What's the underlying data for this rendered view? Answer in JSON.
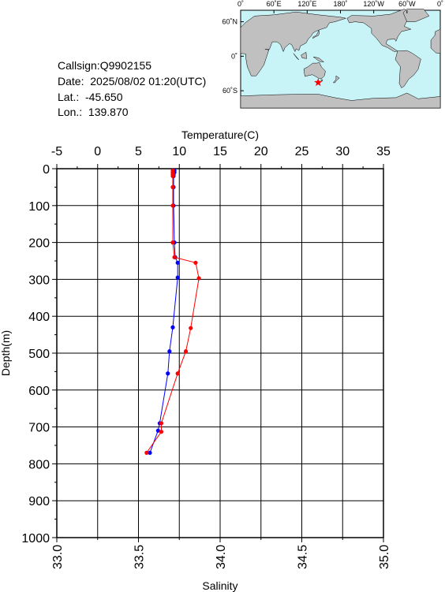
{
  "info": {
    "callsign": "Callsign:Q9902155",
    "date": "Date:  2025/08/02 01:20(UTC)",
    "lat": "Lat.:  -45.650",
    "lon": "Lon.:  139.870"
  },
  "map": {
    "top_ticks": [
      "0˚",
      "60˚E",
      "120˚E",
      "180˚",
      "120˚W",
      "60˚W",
      "0˚"
    ],
    "left_ticks": [
      "60˚N",
      "0˚",
      "60˚S"
    ],
    "ocean_color": "#c8f4f8",
    "land_color": "#c0c0c0",
    "marker": {
      "lon": 139.87,
      "lat": -45.65,
      "symbol": "star",
      "color": "#ff0000"
    }
  },
  "chart_data": {
    "type": "line",
    "x_top": {
      "label": "Temperature(C)",
      "range": [
        -5,
        35
      ],
      "ticks": [
        "-5",
        "0",
        "5",
        "10",
        "15",
        "20",
        "25",
        "30",
        "35"
      ]
    },
    "x_bottom": {
      "label": "Salinity",
      "range": [
        33.0,
        35.0
      ],
      "ticks": [
        "33.0",
        "33.5",
        "34.0",
        "34.5",
        "35.0"
      ]
    },
    "y": {
      "label": "Depth(m)",
      "range": [
        0,
        1000
      ],
      "inverted": true,
      "ticks": [
        "0",
        "100",
        "200",
        "300",
        "400",
        "500",
        "600",
        "700",
        "800",
        "900",
        "1000"
      ]
    },
    "grid": true,
    "series": [
      {
        "axis": "top",
        "color": "#0000ff",
        "depth": [
          5,
          10,
          15,
          20,
          50,
          100,
          200,
          240,
          255,
          295,
          430,
          495,
          555,
          690,
          710,
          770
        ],
        "values": [
          9.4,
          9.4,
          9.3,
          9.3,
          9.3,
          9.3,
          9.4,
          9.5,
          9.8,
          9.8,
          9.2,
          8.8,
          8.6,
          7.6,
          7.4,
          6.4
        ]
      },
      {
        "axis": "bottom",
        "color": "#ff0000",
        "depth": [
          5,
          10,
          15,
          20,
          50,
          100,
          200,
          240,
          255,
          297,
          432,
          495,
          555,
          690,
          713,
          770
        ],
        "values": [
          33.71,
          33.71,
          33.71,
          33.71,
          33.71,
          33.71,
          33.71,
          33.72,
          33.85,
          33.87,
          33.82,
          33.79,
          33.74,
          33.64,
          33.64,
          33.55
        ]
      }
    ]
  }
}
